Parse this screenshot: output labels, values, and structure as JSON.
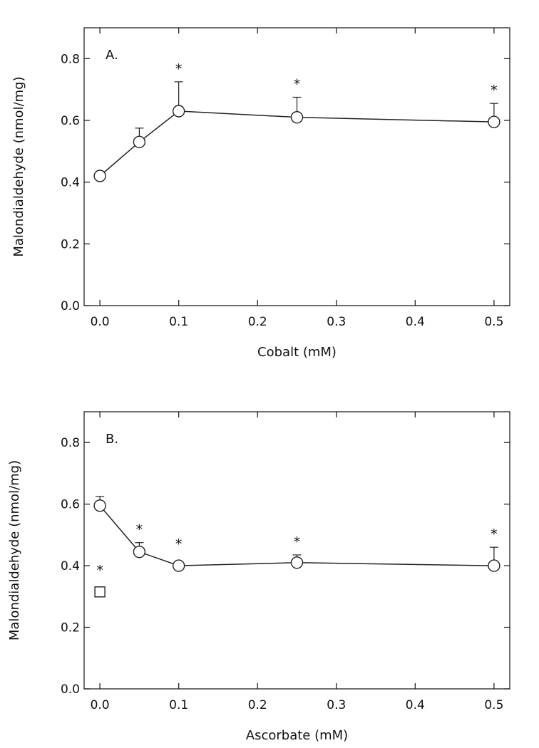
{
  "chart_data": [
    {
      "type": "scatter",
      "panel_label": "A.",
      "xlabel": "Cobalt (mM)",
      "ylabel": "Malondialdehyde (nmol/mg)",
      "xlim": [
        -0.02,
        0.52
      ],
      "ylim": [
        0,
        0.9
      ],
      "x_ticks": [
        0.0,
        0.1,
        0.2,
        0.3,
        0.4,
        0.5
      ],
      "x_tick_labels": [
        "0.0",
        "0.1",
        "0.2",
        "0.3",
        "0.4",
        "0.5"
      ],
      "y_ticks": [
        0.0,
        0.2,
        0.4,
        0.6,
        0.8
      ],
      "y_tick_labels": [
        "0.0",
        "0.2",
        "0.4",
        "0.6",
        "0.8"
      ],
      "grid": false,
      "series": [
        {
          "marker": "circle",
          "connected": true,
          "x": [
            0.0,
            0.05,
            0.1,
            0.25,
            0.5
          ],
          "y": [
            0.42,
            0.53,
            0.63,
            0.61,
            0.595
          ],
          "error_upper": [
            0.0,
            0.045,
            0.095,
            0.065,
            0.06
          ],
          "significant": [
            false,
            false,
            true,
            true,
            true
          ]
        }
      ],
      "significance_mark": "*"
    },
    {
      "type": "scatter",
      "panel_label": "B.",
      "xlabel": "Ascorbate (mM)",
      "ylabel": "Malondialdehyde (nmol/mg)",
      "xlim": [
        -0.02,
        0.52
      ],
      "ylim": [
        0,
        0.9
      ],
      "x_ticks": [
        0.0,
        0.1,
        0.2,
        0.3,
        0.4,
        0.5
      ],
      "x_tick_labels": [
        "0.0",
        "0.1",
        "0.2",
        "0.3",
        "0.4",
        "0.5"
      ],
      "y_ticks": [
        0.0,
        0.2,
        0.4,
        0.6,
        0.8
      ],
      "y_tick_labels": [
        "0.0",
        "0.2",
        "0.4",
        "0.6",
        "0.8"
      ],
      "grid": false,
      "series": [
        {
          "marker": "circle",
          "connected": true,
          "x": [
            0.0,
            0.05,
            0.1,
            0.25,
            0.5
          ],
          "y": [
            0.595,
            0.445,
            0.4,
            0.41,
            0.4
          ],
          "error_upper": [
            0.03,
            0.03,
            0.0,
            0.025,
            0.06
          ],
          "significant": [
            false,
            true,
            true,
            true,
            true
          ]
        },
        {
          "marker": "square",
          "connected": false,
          "x": [
            0.0
          ],
          "y": [
            0.315
          ],
          "error_upper": [
            0.0
          ],
          "significant": [
            true
          ]
        }
      ],
      "significance_mark": "*"
    }
  ]
}
